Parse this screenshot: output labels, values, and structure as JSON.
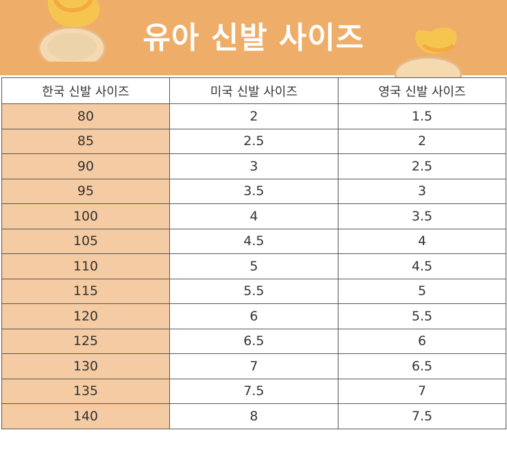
{
  "title": "유아 신발 사이즈",
  "headers": [
    "한국 신발 사이즈",
    "미국 신발 사이즈",
    "영국 신발 사이즈"
  ],
  "rows": [
    [
      "80",
      "2",
      "1.5"
    ],
    [
      "85",
      "2.5",
      "2"
    ],
    [
      "90",
      "3",
      "2.5"
    ],
    [
      "95",
      "3.5",
      "3"
    ],
    [
      "100",
      "4",
      "3.5"
    ],
    [
      "105",
      "4.5",
      "4"
    ],
    [
      "110",
      "5",
      "4.5"
    ],
    [
      "115",
      "5.5",
      "5"
    ],
    [
      "120",
      "6",
      "5.5"
    ],
    [
      "125",
      "6.5",
      "6"
    ],
    [
      "130",
      "7",
      "6.5"
    ],
    [
      "135",
      "7.5",
      "7"
    ],
    [
      "140",
      "8",
      "7.5"
    ]
  ],
  "colors": {
    "banner": "#eeae69",
    "korean_column": "#f4cba2",
    "title_text": "#ffffff",
    "cell_text": "#333333"
  },
  "icons": [
    "baby-shoe-icon",
    "baby-shoe-icon"
  ]
}
